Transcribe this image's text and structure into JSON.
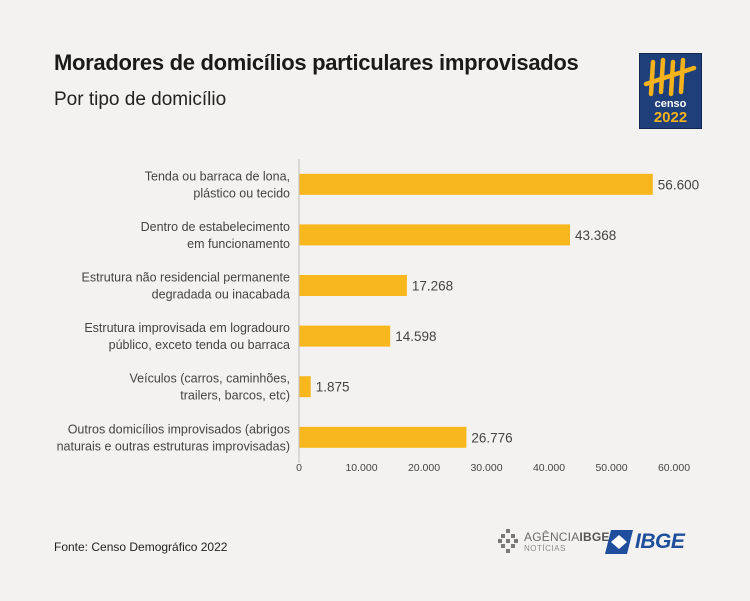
{
  "header": {
    "title": "Moradores de domicílios particulares improvisados",
    "subtitle": "Por tipo de domicílio"
  },
  "badge": {
    "line1": "censo",
    "line2": "2022",
    "color_bg": "#1f3f7a",
    "color_fg": "#f5b31b",
    "icon": "tally-marks-icon"
  },
  "footer": {
    "source": "Fonte: Censo Demográfico 2022",
    "agencia_prefix": "AGÊNCIA",
    "agencia_bold": "IBGE",
    "agencia_sub": "NOTÍCIAS",
    "ibge_logo_text": "IBGE"
  },
  "colors": {
    "bar": "#f8b71c",
    "text": "#444444",
    "axis": "#bfbfbf"
  },
  "chart_data": {
    "type": "bar",
    "orientation": "horizontal",
    "title": "Moradores de domicílios particulares improvisados",
    "subtitle": "Por tipo de domicílio",
    "categories": [
      [
        "Tenda ou barraca de lona,",
        "plástico ou tecido"
      ],
      [
        "Dentro de estabelecimento",
        "em funcionamento"
      ],
      [
        "Estrutura não residencial permanente",
        "degradada ou inacabada"
      ],
      [
        "Estrutura improvisada em logradouro",
        "público, exceto tenda ou barraca"
      ],
      [
        "Veículos (carros, caminhões,",
        "trailers, barcos, etc)"
      ],
      [
        "Outros domicílios improvisados (abrigos",
        "naturais e outras estruturas improvisadas)"
      ]
    ],
    "values": [
      56600,
      43368,
      17268,
      14598,
      1875,
      26776
    ],
    "value_labels": [
      "56.600",
      "43.368",
      "17.268",
      "14.598",
      "1.875",
      "26.776"
    ],
    "xlim": [
      0,
      60000
    ],
    "ticks": [
      0,
      10000,
      20000,
      30000,
      40000,
      50000,
      60000
    ],
    "tick_labels": [
      "0",
      "10.000",
      "20.000",
      "30.000",
      "40.000",
      "50.000",
      "60.000"
    ],
    "grid": false,
    "legend": "none"
  }
}
